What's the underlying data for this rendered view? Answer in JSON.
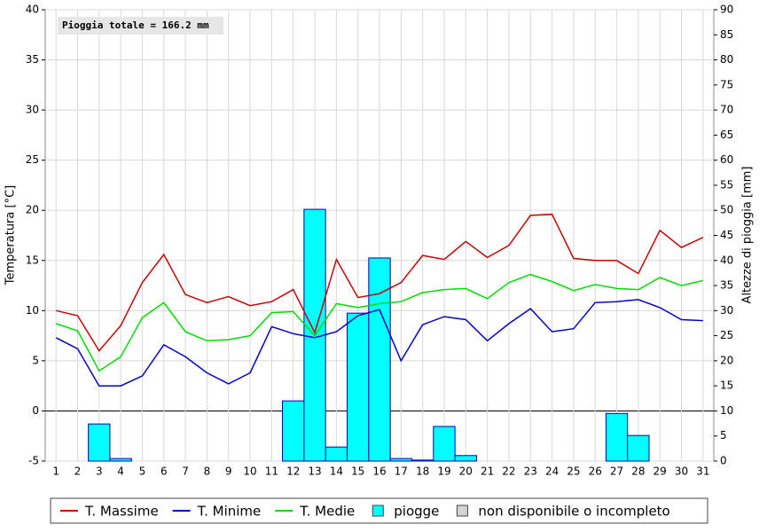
{
  "chart_data": {
    "type": "combo",
    "annotation": "Pioggia totale = 166.2 mm",
    "ylabel": "Temperatura [°C]",
    "y2label": "Altezze di pioggia [mm]",
    "categories": [
      "1",
      "2",
      "3",
      "4",
      "5",
      "6",
      "7",
      "8",
      "9",
      "10",
      "11",
      "12",
      "13",
      "14",
      "15",
      "16",
      "17",
      "18",
      "19",
      "20",
      "21",
      "22",
      "23",
      "24",
      "25",
      "26",
      "27",
      "28",
      "29",
      "30",
      "31"
    ],
    "series": [
      {
        "name": "T. Massime",
        "type": "line",
        "color": "#cc0000",
        "values": [
          10,
          9.5,
          6,
          8.5,
          12.8,
          15.6,
          11.6,
          10.8,
          11.4,
          10.5,
          10.9,
          12.1,
          7.8,
          15.1,
          11.3,
          11.7,
          12.8,
          15.5,
          15.1,
          16.9,
          15.3,
          16.5,
          19.5,
          19.6,
          15.2,
          15.0,
          15.0,
          13.7,
          18.0,
          16.3,
          17.3
        ]
      },
      {
        "name": "T. Minime",
        "type": "line",
        "color": "#0000cc",
        "values": [
          7.3,
          6.2,
          2.5,
          2.5,
          3.5,
          6.6,
          5.4,
          3.8,
          2.7,
          3.8,
          8.4,
          7.7,
          7.3,
          7.9,
          9.5,
          10.1,
          5.0,
          8.6,
          9.4,
          9.1,
          7.0,
          8.7,
          10.2,
          7.9,
          8.2,
          10.8,
          10.9,
          11.1,
          10.3,
          9.1,
          9.0
        ]
      },
      {
        "name": "T. Medie",
        "type": "line",
        "color": "#00dd00",
        "values": [
          8.7,
          8.0,
          4.0,
          5.4,
          9.3,
          10.8,
          7.9,
          7.0,
          7.1,
          7.5,
          9.8,
          9.9,
          7.5,
          10.7,
          10.3,
          10.7,
          10.9,
          11.8,
          12.1,
          12.2,
          11.2,
          12.8,
          13.6,
          12.9,
          12.0,
          12.6,
          12.2,
          12.1,
          13.3,
          12.5,
          13.0
        ]
      },
      {
        "name": "piogge",
        "type": "bar",
        "axis": "y2",
        "color": "#00ffff",
        "values": [
          0,
          0,
          7.4,
          0.5,
          0,
          0,
          0,
          0,
          0,
          0,
          0,
          12.0,
          50.2,
          2.8,
          29.5,
          40.5,
          0.5,
          0.2,
          6.9,
          1.1,
          0,
          0,
          0,
          0,
          0,
          0,
          9.5,
          5.1,
          0,
          0,
          0
        ]
      }
    ],
    "legend_extra": {
      "name": "non disponibile o incompleto",
      "color": "#d4d4d4"
    },
    "ylim": [
      -5,
      40
    ],
    "yticks": [
      -5,
      0,
      5,
      10,
      15,
      20,
      25,
      30,
      35,
      40
    ],
    "y2lim": [
      0,
      90
    ],
    "y2ticks": [
      0,
      5,
      10,
      15,
      20,
      25,
      30,
      35,
      40,
      45,
      50,
      55,
      60,
      65,
      70,
      75,
      80,
      85,
      90
    ],
    "grid": true
  }
}
